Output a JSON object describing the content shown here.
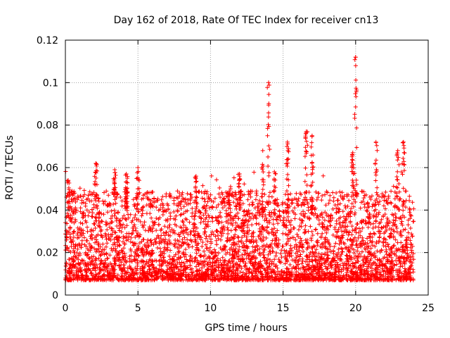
{
  "chart_data": {
    "type": "scatter",
    "title": "Day 162 of 2018, Rate Of TEC Index for receiver cn13",
    "xlabel": "GPS time / hours",
    "ylabel": "ROTI / TECUs",
    "xlim": [
      0,
      25
    ],
    "ylim": [
      0,
      0.12
    ],
    "xticks": [
      0,
      5,
      10,
      15,
      20,
      25
    ],
    "xtick_labels": [
      "0",
      "5",
      "10",
      "15",
      "20",
      "25"
    ],
    "yticks": [
      0,
      0.02,
      0.04,
      0.06,
      0.08,
      0.1,
      0.12
    ],
    "ytick_labels": [
      "0",
      "0.02",
      "0.04",
      "0.06",
      "0.08",
      "0.1",
      "0.12"
    ],
    "grid": true,
    "marker": "plus",
    "series": [
      {
        "name": "ROTI",
        "color": "#ff0000",
        "x_range": [
          0,
          24
        ],
        "baseline_range": [
          0.003,
          0.045
        ],
        "peaks": [
          {
            "x": 0.2,
            "y": 0.054
          },
          {
            "x": 2.1,
            "y": 0.062
          },
          {
            "x": 3.4,
            "y": 0.059
          },
          {
            "x": 4.2,
            "y": 0.057
          },
          {
            "x": 5.0,
            "y": 0.06
          },
          {
            "x": 9.0,
            "y": 0.056
          },
          {
            "x": 11.3,
            "y": 0.049
          },
          {
            "x": 12.0,
            "y": 0.057
          },
          {
            "x": 13.6,
            "y": 0.068
          },
          {
            "x": 14.0,
            "y": 0.1
          },
          {
            "x": 14.4,
            "y": 0.058
          },
          {
            "x": 15.3,
            "y": 0.072
          },
          {
            "x": 16.6,
            "y": 0.077
          },
          {
            "x": 17.0,
            "y": 0.075
          },
          {
            "x": 19.8,
            "y": 0.067
          },
          {
            "x": 20.0,
            "y": 0.112
          },
          {
            "x": 21.4,
            "y": 0.072
          },
          {
            "x": 22.9,
            "y": 0.068
          },
          {
            "x": 23.3,
            "y": 0.072
          }
        ]
      }
    ]
  }
}
